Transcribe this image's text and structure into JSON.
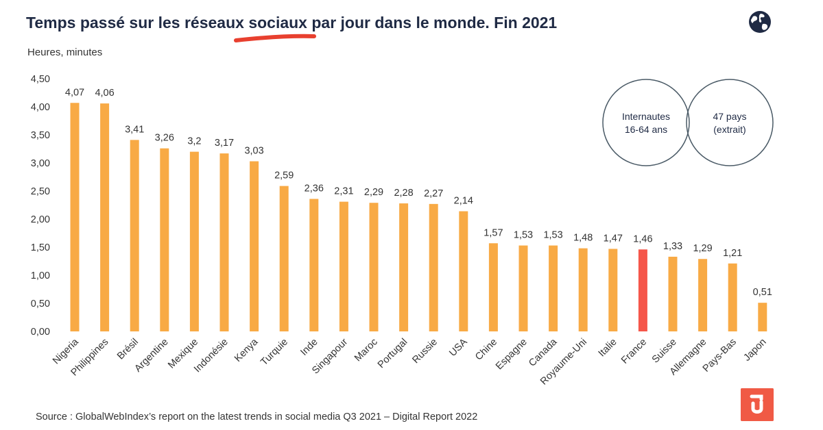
{
  "header": {
    "title": "Temps passé sur les réseaux sociaux par jour dans le monde. Fin 2021",
    "unit_label": "Heures, minutes"
  },
  "icons": {
    "globe": "globe-icon",
    "brand_logo": "brand-logo-icon"
  },
  "venn": {
    "left_line1": "Internautes",
    "left_line2": "16-64 ans",
    "right_line1": "47 pays",
    "right_line2": "(extrait)"
  },
  "footer": {
    "source": "Source : GlobalWebIndex’s report on the latest trends in social media  Q3 2021 – Digital Report 2022"
  },
  "colors": {
    "bar": "#f8aa45",
    "highlight": "#f5564a",
    "title": "#1f2a44",
    "accent_underline": "#e8402f",
    "logo": "#f05a45"
  },
  "chart_data": {
    "type": "bar",
    "title": "Temps passé sur les réseaux sociaux par jour dans le monde. Fin 2021",
    "ylabel": "Heures, minutes",
    "xlabel": "",
    "ylim": [
      0,
      4.5
    ],
    "yticks": [
      "0,00",
      "0,50",
      "1,00",
      "1,50",
      "2,00",
      "2,50",
      "3,00",
      "3,50",
      "4,00",
      "4,50"
    ],
    "grid": false,
    "categories": [
      "Nigeria",
      "Philippines",
      "Brésil",
      "Argentine",
      "Mexique",
      "Indonésie",
      "Kenya",
      "Turquie",
      "Inde",
      "Singapour",
      "Maroc",
      "Portugal",
      "Russie",
      "USA",
      "Chine",
      "Espagne",
      "Canada",
      "Royaume-Uni",
      "Italie",
      "France",
      "Suisse",
      "Allemagne",
      "Pays-Bas",
      "Japon"
    ],
    "values": [
      4.07,
      4.06,
      3.41,
      3.26,
      3.2,
      3.17,
      3.03,
      2.59,
      2.36,
      2.31,
      2.29,
      2.28,
      2.27,
      2.14,
      1.57,
      1.53,
      1.53,
      1.48,
      1.47,
      1.46,
      1.33,
      1.29,
      1.21,
      0.51
    ],
    "value_labels": [
      "4,07",
      "4,06",
      "3,41",
      "3,26",
      "3,2",
      "3,17",
      "3,03",
      "2,59",
      "2,36",
      "2,31",
      "2,29",
      "2,28",
      "2,27",
      "2,14",
      "1,57",
      "1,53",
      "1,53",
      "1,48",
      "1,47",
      "1,46",
      "1,33",
      "1,29",
      "1,21",
      "0,51"
    ],
    "highlight_category": "France"
  }
}
